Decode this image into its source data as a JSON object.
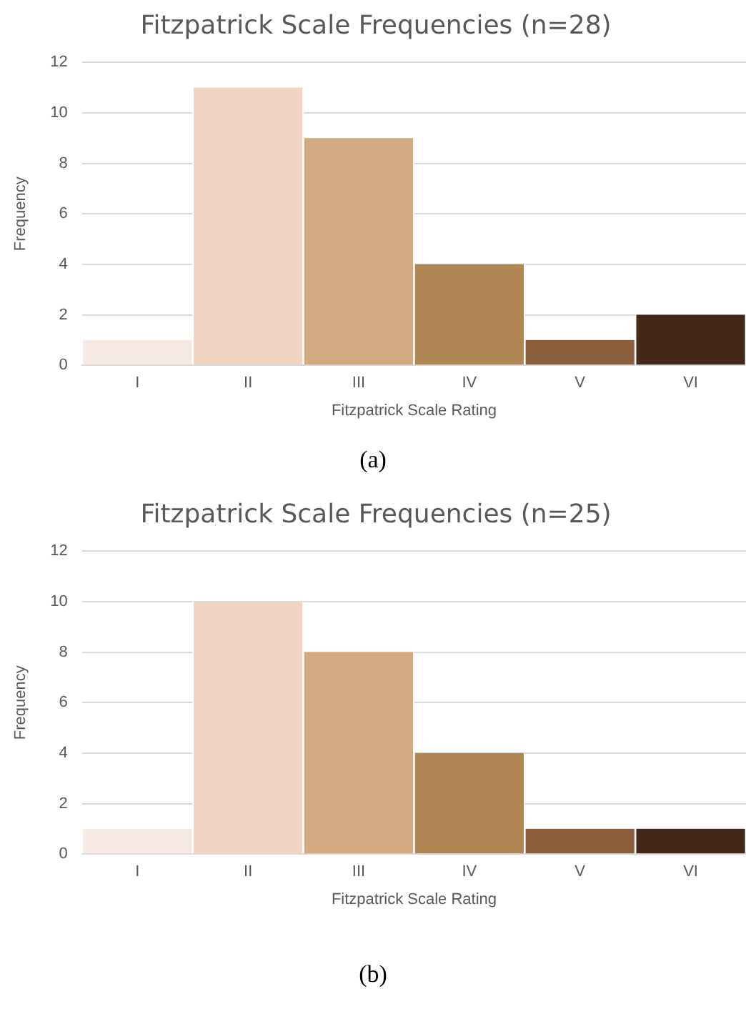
{
  "chart_data": [
    {
      "type": "bar",
      "title": "Fitzpatrick Scale Frequencies (n=28)",
      "xlabel": "Fitzpatrick Scale Rating",
      "ylabel": "Frequency",
      "categories": [
        "I",
        "II",
        "III",
        "IV",
        "V",
        "VI"
      ],
      "values": [
        1,
        11,
        9,
        4,
        1,
        2
      ],
      "colors": [
        "#f6e8e3",
        "#f1d5c2",
        "#d2a980",
        "#b08654",
        "#8c5f3c",
        "#43281a"
      ],
      "ylim": [
        0,
        12
      ],
      "yticks": [
        0,
        2,
        4,
        6,
        8,
        10,
        12
      ],
      "grid": "y",
      "annotations": [
        "(a)"
      ]
    },
    {
      "type": "bar",
      "title": "Fitzpatrick Scale Frequencies (n=25)",
      "xlabel": "Fitzpatrick Scale Rating",
      "ylabel": "Frequency",
      "categories": [
        "I",
        "II",
        "III",
        "IV",
        "V",
        "VI"
      ],
      "values": [
        1,
        10,
        8,
        4,
        1,
        1
      ],
      "colors": [
        "#f6e8e3",
        "#f1d5c2",
        "#d2a980",
        "#b08654",
        "#8c5f3c",
        "#43281a"
      ],
      "ylim": [
        0,
        12
      ],
      "yticks": [
        0,
        2,
        4,
        6,
        8,
        10,
        12
      ],
      "grid": "y",
      "annotations": [
        "(b)"
      ]
    }
  ]
}
